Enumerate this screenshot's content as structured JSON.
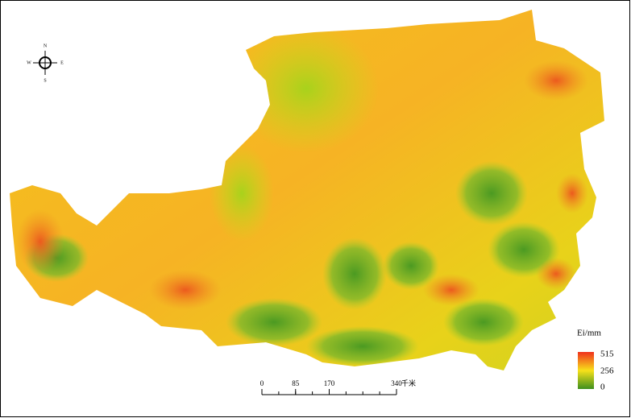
{
  "compass": {
    "north": "N",
    "west": "W",
    "east": "E",
    "south": "S"
  },
  "legend": {
    "title": "Ei/mm",
    "labels": [
      515,
      256,
      0
    ]
  },
  "scale_bar": {
    "ticks": [
      0,
      85,
      170,
      340
    ],
    "unit": "千米"
  }
}
